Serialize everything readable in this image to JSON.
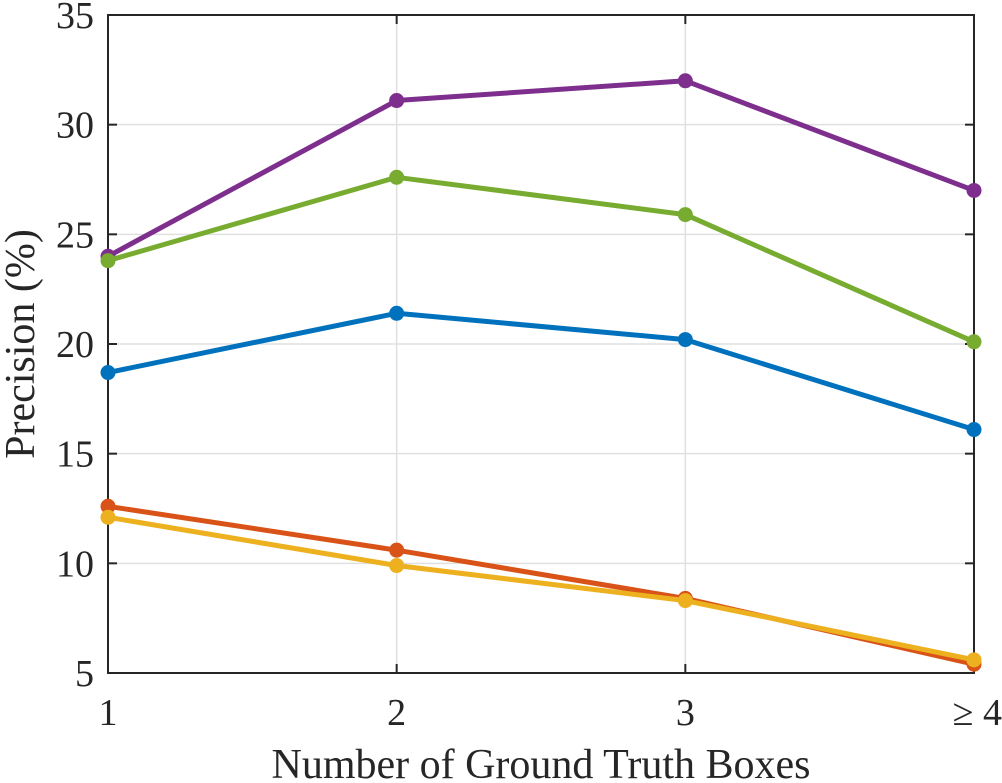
{
  "chart_data": {
    "type": "line",
    "title": "",
    "xlabel": "Number of Ground Truth Boxes",
    "ylabel": "Precision (%)",
    "categories": [
      "1",
      "2",
      "3",
      "≥ 4"
    ],
    "ylim": [
      5,
      35
    ],
    "yticks": [
      5,
      10,
      15,
      20,
      25,
      30,
      35
    ],
    "grid": true,
    "legend": null,
    "series": [
      {
        "name": "purple",
        "color": "#7E2F8E",
        "values": [
          24.0,
          31.1,
          32.0,
          27.0
        ]
      },
      {
        "name": "green",
        "color": "#77AC30",
        "values": [
          23.8,
          27.6,
          25.9,
          20.1
        ]
      },
      {
        "name": "blue",
        "color": "#0072BD",
        "values": [
          18.7,
          21.4,
          20.2,
          16.1
        ]
      },
      {
        "name": "red",
        "color": "#D95319",
        "values": [
          12.6,
          10.6,
          8.4,
          5.4
        ]
      },
      {
        "name": "yellow",
        "color": "#EDB120",
        "values": [
          12.1,
          9.9,
          8.3,
          5.6
        ]
      }
    ]
  },
  "axes": {
    "x_title": "Number of Ground Truth Boxes",
    "y_title": "Precision (%)"
  }
}
